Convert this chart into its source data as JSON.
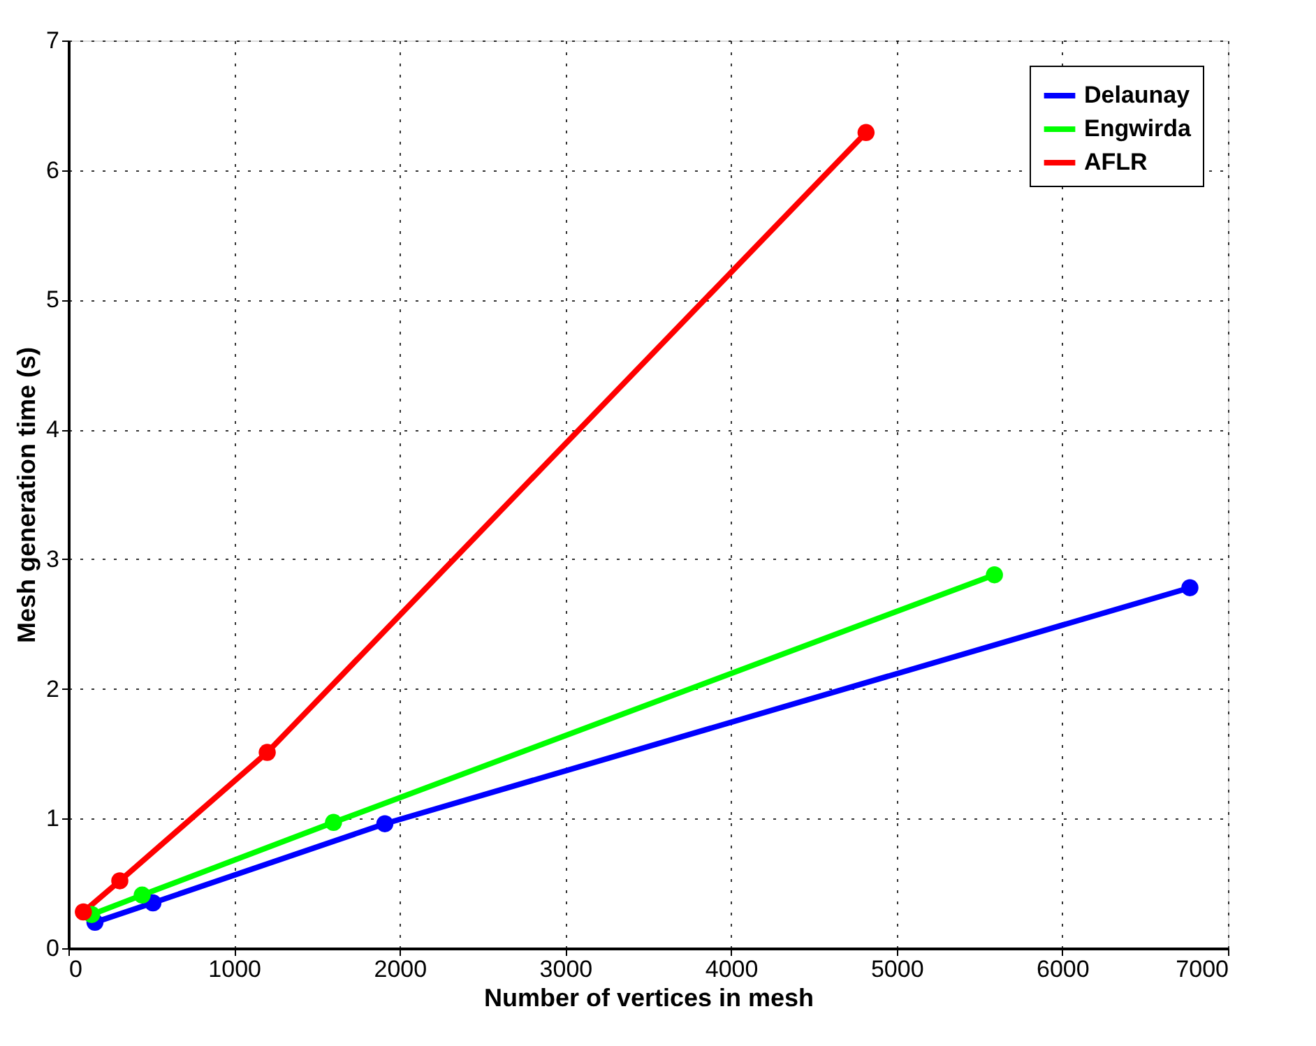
{
  "chart_data": {
    "type": "line",
    "xlabel": "Number of vertices in mesh",
    "ylabel": "Mesh generation time (s)",
    "xlim": [
      0,
      7000
    ],
    "xticks": [
      0,
      1000,
      2000,
      3000,
      4000,
      5000,
      6000,
      7000
    ],
    "ylim": [
      0,
      7
    ],
    "yticks": [
      0,
      1,
      2,
      3,
      4,
      5,
      6,
      7
    ],
    "grid": true,
    "legend": "top right",
    "marker": "circle",
    "line_style": "solid",
    "series": [
      {
        "name": "Delaunay",
        "color": "#0000ff",
        "x": [
          160,
          510,
          1910,
          6770
        ],
        "values": [
          0.2,
          0.35,
          0.96,
          2.78
        ]
      },
      {
        "name": "Engwirda",
        "color": "#00ff00",
        "x": [
          140,
          445,
          1600,
          5590
        ],
        "values": [
          0.26,
          0.41,
          0.97,
          2.88
        ]
      },
      {
        "name": "AFLR",
        "color": "#ff0000",
        "x": [
          90,
          310,
          1200,
          4815
        ],
        "values": [
          0.28,
          0.52,
          1.51,
          6.29
        ]
      }
    ]
  }
}
